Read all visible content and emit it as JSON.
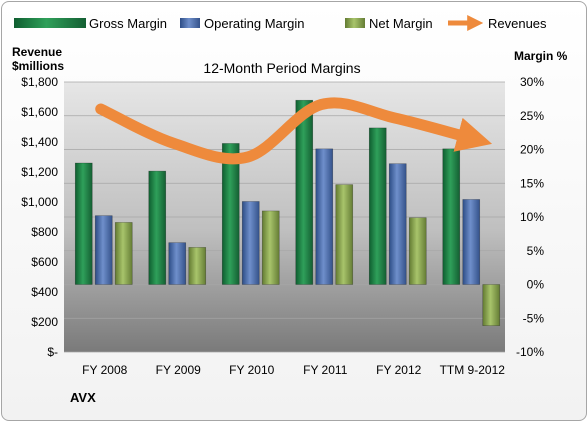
{
  "chart_data": {
    "type": "bar",
    "title": "12-Month Period Margins",
    "company": "AVX",
    "y_left_label_line1": "Revenue",
    "y_left_label_line2": "$millions",
    "y_right_label": "Margin %",
    "categories": [
      "FY 2008",
      "FY 2009",
      "FY 2010",
      "FY 2011",
      "FY 2012",
      "TTM 9-2012"
    ],
    "y_left_ticks": [
      "$1,800",
      "$1,600",
      "$1,400",
      "$1,200",
      "$1,000",
      "$800",
      "$600",
      "$400",
      "$200",
      "$-"
    ],
    "y_right_ticks": [
      "30%",
      "25%",
      "20%",
      "15%",
      "10%",
      "5%",
      "0%",
      "-5%",
      "-10%"
    ],
    "y_left_range": [
      0,
      1800
    ],
    "y_right_range": [
      -10,
      30
    ],
    "legend_position": "top",
    "series": [
      {
        "name": "Gross Margin",
        "axis": "right",
        "kind": "bar",
        "values": [
          18,
          16.8,
          20.9,
          27.3,
          23.2,
          20.1
        ]
      },
      {
        "name": "Operating Margin",
        "axis": "right",
        "kind": "bar",
        "values": [
          10.2,
          6.2,
          12.3,
          20.1,
          17.9,
          12.6
        ]
      },
      {
        "name": "Net Margin",
        "axis": "right",
        "kind": "bar",
        "values": [
          9.2,
          5.5,
          10.9,
          14.8,
          9.9,
          -6.1
        ]
      },
      {
        "name": "Revenues",
        "axis": "left",
        "kind": "line",
        "values": [
          1620,
          1390,
          1300,
          1650,
          1560,
          1430
        ]
      }
    ],
    "colors": {
      "gross": "#1e8a4a",
      "operating": "#4a6eb0",
      "net": "#8aaa4e",
      "revenue": "#ee8a3c",
      "plot_bg_top": "#d9d9d9",
      "plot_bg_bottom": "#7f7f7f"
    }
  }
}
